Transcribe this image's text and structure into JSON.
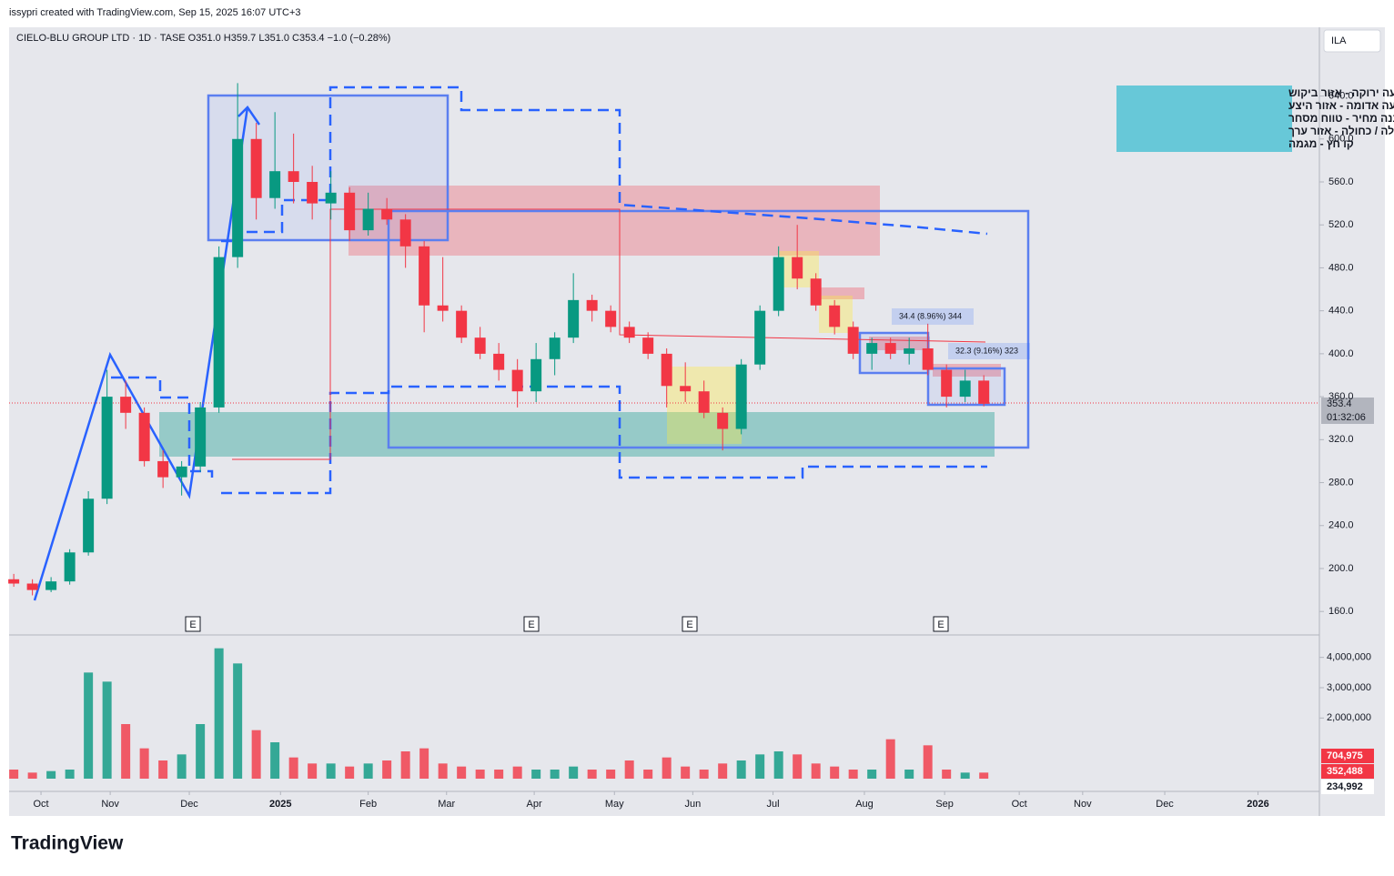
{
  "header": {
    "credit": "issypri created with TradingView.com, Sep 15, 2025 16:07 UTC+3",
    "currency": "ILA",
    "logo": "TradingView"
  },
  "legend_box": [
    "רצועה ירוקה - אזור ביקוש",
    "רצועה אדומה - אזור היצע",
    "מלבן - מבנה מחיר - טווח מסחר",
    "עקומה סגולה / כחולה - אזור ערך",
    "קו חץ - מגמה"
  ],
  "measures": [
    "34.4 (8.96%) 344",
    "32.3 (9.16%) 323"
  ],
  "earnings_markers": [
    "E",
    "E",
    "E",
    "E"
  ],
  "chart_data": {
    "type": "candlestick",
    "title": "CIELO-BLU GROUP LTD · 1D · TASE  O351.0  H359.7  L351.0  C353.4  −1.0 (−0.28%)",
    "categories": [
      null,
      null,
      null,
      null,
      null,
      null,
      null,
      null,
      null,
      null,
      null,
      null,
      null,
      null,
      null,
      null,
      null,
      null,
      null,
      null,
      null,
      null,
      null,
      null,
      null,
      null,
      null,
      null,
      null,
      null,
      null,
      null,
      null,
      null,
      null,
      null,
      null,
      null,
      null,
      null,
      null,
      null,
      null,
      null,
      null,
      null,
      null,
      null,
      null,
      null,
      null,
      null,
      null
    ],
    "open": [
      190,
      186,
      180,
      188,
      215,
      265,
      360,
      345,
      300,
      285,
      295,
      350,
      490,
      600,
      545,
      570,
      560,
      540,
      550,
      515,
      535,
      525,
      500,
      445,
      440,
      415,
      400,
      385,
      365,
      395,
      415,
      450,
      440,
      425,
      415,
      400,
      370,
      365,
      345,
      330,
      390,
      440,
      490,
      470,
      445,
      425,
      400,
      410,
      400,
      405,
      385,
      360,
      375
    ],
    "high": [
      195,
      190,
      192,
      218,
      272,
      385,
      375,
      350,
      310,
      300,
      355,
      500,
      652,
      615,
      625,
      605,
      575,
      570,
      555,
      550,
      545,
      530,
      505,
      490,
      445,
      425,
      410,
      395,
      410,
      420,
      475,
      455,
      445,
      430,
      420,
      405,
      392,
      375,
      350,
      395,
      445,
      500,
      520,
      475,
      450,
      430,
      415,
      415,
      415,
      428,
      390,
      385,
      380
    ],
    "low": [
      183,
      175,
      178,
      185,
      212,
      260,
      330,
      295,
      275,
      268,
      290,
      345,
      480,
      525,
      535,
      540,
      525,
      525,
      505,
      510,
      520,
      480,
      420,
      430,
      410,
      395,
      375,
      350,
      355,
      380,
      410,
      430,
      420,
      410,
      395,
      350,
      355,
      340,
      310,
      325,
      385,
      435,
      460,
      440,
      418,
      395,
      385,
      395,
      390,
      380,
      350,
      355,
      351
    ],
    "close": [
      186,
      180,
      188,
      215,
      265,
      360,
      345,
      300,
      285,
      295,
      350,
      490,
      600,
      545,
      570,
      560,
      540,
      550,
      515,
      535,
      525,
      500,
      445,
      440,
      415,
      400,
      385,
      365,
      395,
      415,
      450,
      440,
      425,
      415,
      400,
      370,
      365,
      345,
      330,
      390,
      440,
      490,
      470,
      445,
      425,
      400,
      410,
      400,
      405,
      385,
      360,
      375,
      353.4
    ],
    "up_color": "#089981",
    "down_color": "#f23645",
    "xlim": [
      -0.25,
      69.99
    ],
    "xticks": [
      {
        "value": 1.46,
        "label": "Oct"
      },
      {
        "value": 5.17,
        "label": "Nov"
      },
      {
        "value": 9.41,
        "label": "Dec"
      },
      {
        "value": 14.3,
        "label": "2025"
      },
      {
        "value": 19.0,
        "label": "Feb"
      },
      {
        "value": 23.2,
        "label": "Mar"
      },
      {
        "value": 27.9,
        "label": "Apr"
      },
      {
        "value": 32.2,
        "label": "May"
      },
      {
        "value": 36.4,
        "label": "Jun"
      },
      {
        "value": 40.7,
        "label": "Jul"
      },
      {
        "value": 45.6,
        "label": "Aug"
      },
      {
        "value": 49.9,
        "label": "Sep"
      },
      {
        "value": 53.9,
        "label": "Oct"
      },
      {
        "value": 57.3,
        "label": "Nov"
      },
      {
        "value": 61.7,
        "label": "Dec"
      },
      {
        "value": 66.7,
        "label": "2026"
      }
    ],
    "ylim": [
      139,
      704
    ],
    "yticks": [
      {
        "value": 160,
        "label": "160.0"
      },
      {
        "value": 200,
        "label": "200.0"
      },
      {
        "value": 240,
        "label": "240.0"
      },
      {
        "value": 280,
        "label": "280.0"
      },
      {
        "value": 320,
        "label": "320.0"
      },
      {
        "value": 360,
        "label": "360.0"
      },
      {
        "value": 400,
        "label": "400.0"
      },
      {
        "value": 440,
        "label": "440.0"
      },
      {
        "value": 480,
        "label": "480.0"
      },
      {
        "value": 520,
        "label": "520.0"
      },
      {
        "value": 560,
        "label": "560.0"
      },
      {
        "value": 600,
        "label": "600.0"
      },
      {
        "value": 640,
        "label": "640.0"
      }
    ],
    "last_price": {
      "value": 353.4,
      "label": "353.4"
    },
    "countdown": "01:32:06",
    "volume": {
      "values": [
        300000,
        200000,
        250000,
        300000,
        3500000,
        3200000,
        1800000,
        1000000,
        600000,
        800000,
        1800000,
        4300000,
        3800000,
        1600000,
        1200000,
        700000,
        500000,
        500000,
        400000,
        500000,
        600000,
        900000,
        1000000,
        500000,
        400000,
        300000,
        300000,
        400000,
        300000,
        300000,
        400000,
        300000,
        300000,
        600000,
        300000,
        700000,
        400000,
        300000,
        500000,
        600000,
        800000,
        900000,
        800000,
        500000,
        400000,
        300000,
        300000,
        1300000,
        300000,
        1100000,
        300000,
        200000,
        200000
      ],
      "ylim": [
        -420000,
        4680000
      ],
      "yticks": [
        {
          "value": 2000000,
          "label": "2,000,000"
        },
        {
          "value": 3000000,
          "label": "3,000,000"
        },
        {
          "value": 4000000,
          "label": "4,000,000"
        }
      ],
      "side_labels": [
        "704,975",
        "352,488",
        "234,992"
      ]
    }
  }
}
